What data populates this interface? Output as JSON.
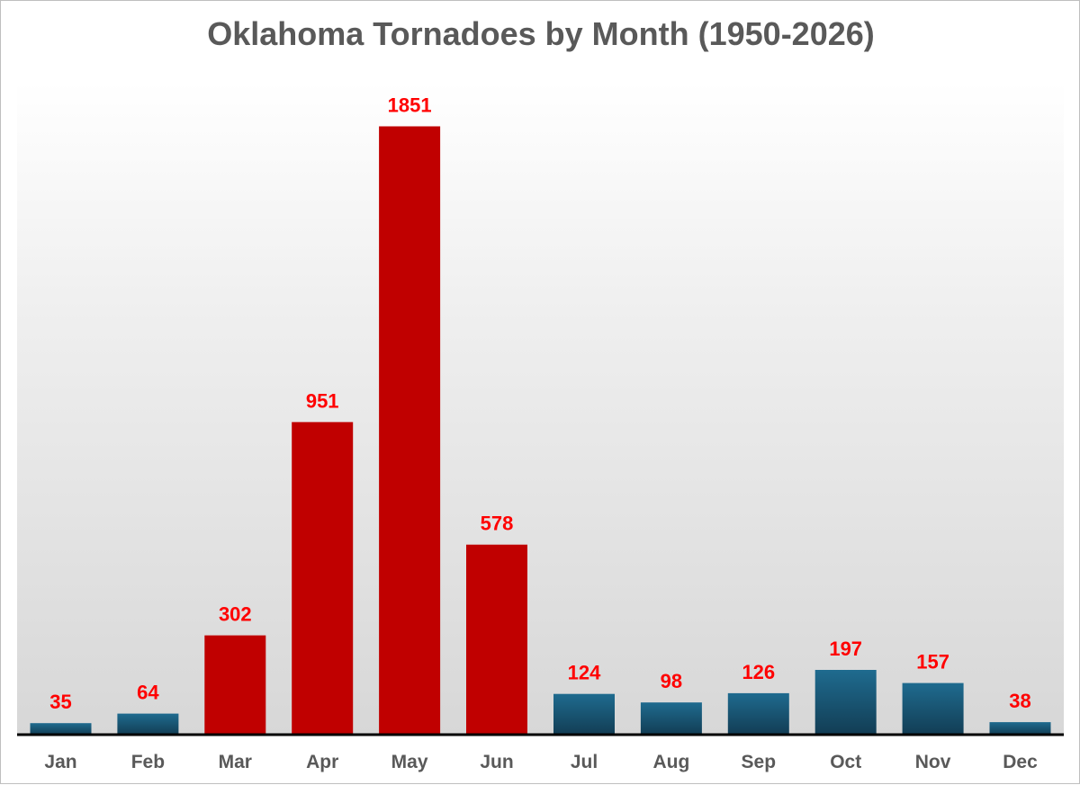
{
  "chart_data": {
    "type": "bar",
    "title": "Oklahoma Tornadoes by Month (1950-2026)",
    "xlabel": "",
    "ylabel": "",
    "categories": [
      "Jan",
      "Feb",
      "Mar",
      "Apr",
      "May",
      "Jun",
      "Jul",
      "Aug",
      "Sep",
      "Oct",
      "Nov",
      "Dec"
    ],
    "values": [
      35,
      64,
      302,
      951,
      1851,
      578,
      124,
      98,
      126,
      197,
      157,
      38
    ],
    "highlighted": [
      false,
      false,
      true,
      true,
      true,
      true,
      false,
      false,
      false,
      false,
      false,
      false
    ],
    "ylim": [
      0,
      2000
    ],
    "grid": false,
    "legend": "none",
    "colors": {
      "highlight_bar": "#c00000",
      "normal_bar_top": "#1f6b8f",
      "normal_bar_bottom": "#123d54",
      "label": "#ff0000",
      "tick": "#595959",
      "axis": "#000000"
    }
  }
}
